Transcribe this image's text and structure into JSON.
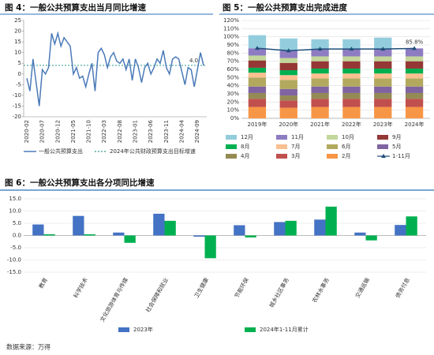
{
  "chart_data": [
    {
      "type": "line",
      "title": "图 4：一般公共预算支出当月同比增速",
      "categories": [
        "2020-02",
        null,
        null,
        null,
        null,
        "2020-07",
        null,
        null,
        null,
        null,
        "2020-12",
        null,
        null,
        null,
        null,
        "2021-05",
        null,
        null,
        null,
        null,
        "2021-10",
        null,
        null,
        null,
        null,
        "2022-03",
        null,
        null,
        null,
        null,
        "2022-08",
        null,
        null,
        null,
        null,
        "2023-01",
        null,
        null,
        null,
        null,
        "2023-06",
        null,
        null,
        null,
        null,
        "2023-11",
        null,
        null,
        null,
        null,
        "2024-04",
        null,
        null,
        null,
        null,
        "2024-09",
        null,
        null
      ],
      "series": [
        {
          "name": "一般公共预算支出",
          "color": "#4a7ab8",
          "values": [
            -2,
            -8,
            7,
            -4,
            -15,
            2,
            0,
            3,
            19,
            14,
            19,
            13,
            17,
            15,
            13,
            0,
            3,
            -2,
            -1,
            -6,
            0,
            5,
            -8,
            10,
            12,
            9,
            3,
            8,
            10,
            6,
            5,
            7,
            2,
            7,
            -3,
            7,
            3,
            -4,
            3,
            5,
            0,
            3,
            7,
            5,
            11,
            3,
            0,
            7,
            8,
            7,
            1,
            -5,
            3,
            2,
            -6,
            2,
            10,
            4
          ]
        }
      ],
      "reference_line": {
        "name": "2024年公共财政预算支出目标增速",
        "value": 4,
        "value_label": "4.0",
        "color": "#2e9c8f"
      },
      "ylim": [
        -20,
        25
      ],
      "yticks": [
        -20,
        -15,
        -10,
        -5,
        0,
        5,
        10,
        15,
        20,
        25
      ]
    },
    {
      "type": "stacked_bar",
      "title": "图 5：一般公共预算支出完成进度",
      "categories": [
        "2019年",
        "2020年",
        "2021年",
        "2022年",
        "2023年",
        "2024年"
      ],
      "series": [
        {
          "name": "2月",
          "color": "#f79646",
          "values": [
            14,
            13,
            14,
            14,
            14,
            14
          ]
        },
        {
          "name": "3月",
          "color": "#c0504d",
          "values": [
            10,
            9,
            10,
            10,
            10,
            10
          ]
        },
        {
          "name": "4月",
          "color": "#948a54",
          "values": [
            7,
            6,
            7,
            7,
            7,
            7
          ]
        },
        {
          "name": "5月",
          "color": "#8064a2",
          "values": [
            8,
            8,
            8,
            8,
            8,
            8
          ]
        },
        {
          "name": "6月",
          "color": "#b2a95e",
          "values": [
            11,
            11,
            10,
            10,
            10,
            10
          ]
        },
        {
          "name": "7月",
          "color": "#fac090",
          "values": [
            6,
            6,
            6,
            6,
            6,
            6
          ]
        },
        {
          "name": "8月",
          "color": "#00b050",
          "values": [
            6,
            6,
            6,
            6,
            6,
            6
          ]
        },
        {
          "name": "9月",
          "color": "#953735",
          "values": [
            9,
            9,
            9,
            9,
            9,
            9
          ]
        },
        {
          "name": "10月",
          "color": "#c3d69b",
          "values": [
            6,
            6,
            6,
            6,
            6,
            6
          ]
        },
        {
          "name": "11月",
          "color": "#8e7cc3",
          "values": [
            9,
            9,
            9,
            9,
            9,
            9.8
          ]
        },
        {
          "name": "12月",
          "color": "#93cddd",
          "values": [
            16,
            15,
            12,
            12,
            14,
            null
          ]
        }
      ],
      "line_series": {
        "name": "1-11月",
        "color": "#1f4e79",
        "values": [
          86,
          83,
          85,
          85,
          85,
          85.8
        ],
        "value_labels": [
          null,
          null,
          null,
          null,
          null,
          "85.8%"
        ]
      },
      "ylim": [
        0,
        120
      ],
      "yticks": [
        {
          "value": 0,
          "label": "0%"
        },
        {
          "value": 10,
          "label": "10%"
        },
        {
          "value": 20,
          "label": "20%"
        },
        {
          "value": 30,
          "label": "30%"
        },
        {
          "value": 40,
          "label": "40%"
        },
        {
          "value": 50,
          "label": "50%"
        },
        {
          "value": 60,
          "label": "60%"
        },
        {
          "value": 70,
          "label": "70%"
        },
        {
          "value": 80,
          "label": "80%"
        },
        {
          "value": 90,
          "label": "90%"
        },
        {
          "value": 100,
          "label": "100%"
        },
        {
          "value": 110,
          "label": "110%"
        },
        {
          "value": 120,
          "label": "120%"
        }
      ],
      "grid": true
    },
    {
      "type": "bar",
      "title": "图 6：一般公共预算支出各分项同比增速",
      "categories": [
        "教育",
        "科学技术",
        "文化旅游体育与传媒",
        "社会保障和就业",
        "卫生健康",
        "节能环保",
        "城乡社区事务",
        "农林水事务",
        "交通运输",
        "债务付息"
      ],
      "series": [
        {
          "name": "2023年",
          "color": "#4472c4",
          "values": [
            4.5,
            8,
            1.2,
            8.9,
            -0.5,
            4.2,
            5.5,
            6.5,
            1.2,
            4.3
          ]
        },
        {
          "name": "2024年1-11月累计",
          "color": "#00b050",
          "values": [
            0.5,
            0.5,
            -3,
            6,
            -9.3,
            -0.8,
            6,
            11.8,
            -2,
            7.8
          ]
        }
      ],
      "ylim": [
        -15,
        15
      ],
      "yticks": [
        {
          "value": -15,
          "label": "-15.0"
        },
        {
          "value": -10,
          "label": "-10.0"
        },
        {
          "value": -5,
          "label": "-5.0"
        },
        {
          "value": 0,
          "label": "0.0"
        },
        {
          "value": 5,
          "label": "5.0"
        },
        {
          "value": 10,
          "label": "10.0"
        },
        {
          "value": 15,
          "label": "15.0"
        }
      ],
      "grid": true
    }
  ],
  "footer": "数据来源：万得"
}
